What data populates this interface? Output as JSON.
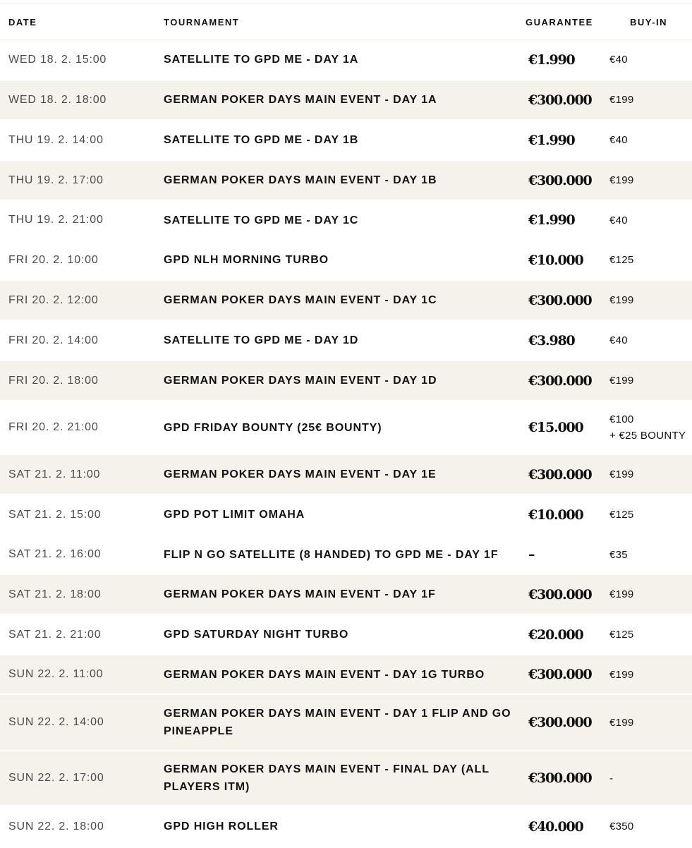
{
  "header": {
    "date": "DATE",
    "tournament": "TOURNAMENT",
    "guarantee": "GUARANTEE",
    "buyin": "BUY-IN"
  },
  "colors": {
    "row_shade": "#f5f1eb",
    "text": "#111111",
    "date_text": "#4a4a4a"
  },
  "rows": [
    {
      "date": "WED 18. 2. 15:00",
      "tournament": "SATELLITE TO GPD ME - DAY 1A",
      "guarantee": "€1.990",
      "buyin": "€40",
      "buyin_extra": "",
      "shaded": false
    },
    {
      "date": "WED 18. 2. 18:00",
      "tournament": "GERMAN POKER DAYS MAIN EVENT - DAY 1A",
      "guarantee": "€300.000",
      "buyin": "€199",
      "buyin_extra": "",
      "shaded": true
    },
    {
      "date": "THU 19. 2. 14:00",
      "tournament": "SATELLITE TO GPD ME - DAY 1B",
      "guarantee": "€1.990",
      "buyin": "€40",
      "buyin_extra": "",
      "shaded": false
    },
    {
      "date": "THU 19. 2. 17:00",
      "tournament": "GERMAN POKER DAYS MAIN EVENT - DAY 1B",
      "guarantee": "€300.000",
      "buyin": "€199",
      "buyin_extra": "",
      "shaded": true
    },
    {
      "date": "THU 19. 2. 21:00",
      "tournament": "SATELLITE TO GPD ME - DAY 1C",
      "guarantee": "€1.990",
      "buyin": "€40",
      "buyin_extra": "",
      "shaded": false
    },
    {
      "date": "FRI 20. 2. 10:00",
      "tournament": "GPD NLH MORNING TURBO",
      "guarantee": "€10.000",
      "buyin": "€125",
      "buyin_extra": "",
      "shaded": false
    },
    {
      "date": "FRI 20. 2. 12:00",
      "tournament": "GERMAN POKER DAYS MAIN EVENT - DAY 1C",
      "guarantee": "€300.000",
      "buyin": "€199",
      "buyin_extra": "",
      "shaded": true
    },
    {
      "date": "FRI 20. 2. 14:00",
      "tournament": "SATELLITE TO GPD ME - DAY 1D",
      "guarantee": "€3.980",
      "buyin": "€40",
      "buyin_extra": "",
      "shaded": false
    },
    {
      "date": "FRI 20. 2. 18:00",
      "tournament": "GERMAN POKER DAYS MAIN EVENT - DAY 1D",
      "guarantee": "€300.000",
      "buyin": "€199",
      "buyin_extra": "",
      "shaded": true
    },
    {
      "date": "FRI 20. 2. 21:00",
      "tournament": "GPD FRIDAY BOUNTY (25€ BOUNTY)",
      "guarantee": "€15.000",
      "buyin": "€100",
      "buyin_extra": "+ €25 BOUNTY",
      "shaded": false
    },
    {
      "date": "SAT 21. 2. 11:00",
      "tournament": "GERMAN POKER DAYS MAIN EVENT - DAY 1E",
      "guarantee": "€300.000",
      "buyin": "€199",
      "buyin_extra": "",
      "shaded": true
    },
    {
      "date": "SAT 21. 2. 15:00",
      "tournament": "GPD POT LIMIT OMAHA",
      "guarantee": "€10.000",
      "buyin": "€125",
      "buyin_extra": "",
      "shaded": false
    },
    {
      "date": "SAT 21. 2. 16:00",
      "tournament": "FLIP N GO SATELLITE (8 HANDED) TO GPD ME - DAY 1F",
      "guarantee": "–",
      "buyin": "€35",
      "buyin_extra": "",
      "shaded": false
    },
    {
      "date": "SAT 21. 2. 18:00",
      "tournament": "GERMAN POKER DAYS MAIN EVENT - DAY 1F",
      "guarantee": "€300.000",
      "buyin": "€199",
      "buyin_extra": "",
      "shaded": true
    },
    {
      "date": "SAT 21. 2. 21:00",
      "tournament": "GPD SATURDAY NIGHT TURBO",
      "guarantee": "€20.000",
      "buyin": "€125",
      "buyin_extra": "",
      "shaded": false
    },
    {
      "date": "SUN 22. 2. 11:00",
      "tournament": "GERMAN POKER DAYS MAIN EVENT - DAY 1G TURBO",
      "guarantee": "€300.000",
      "buyin": "€199",
      "buyin_extra": "",
      "shaded": true
    },
    {
      "date": "SUN 22. 2. 14:00",
      "tournament": "GERMAN POKER DAYS MAIN EVENT - DAY 1 FLIP AND GO PINEAPPLE",
      "guarantee": "€300.000",
      "buyin": "€199",
      "buyin_extra": "",
      "shaded": true
    },
    {
      "date": "SUN 22. 2. 17:00",
      "tournament": "GERMAN POKER DAYS MAIN EVENT - FINAL DAY (ALL PLAYERS ITM)",
      "guarantee": "€300.000",
      "buyin": "-",
      "buyin_extra": "",
      "shaded": true
    },
    {
      "date": "SUN 22. 2. 18:00",
      "tournament": "GPD HIGH ROLLER",
      "guarantee": "€40.000",
      "buyin": "€350",
      "buyin_extra": "",
      "shaded": false
    }
  ]
}
